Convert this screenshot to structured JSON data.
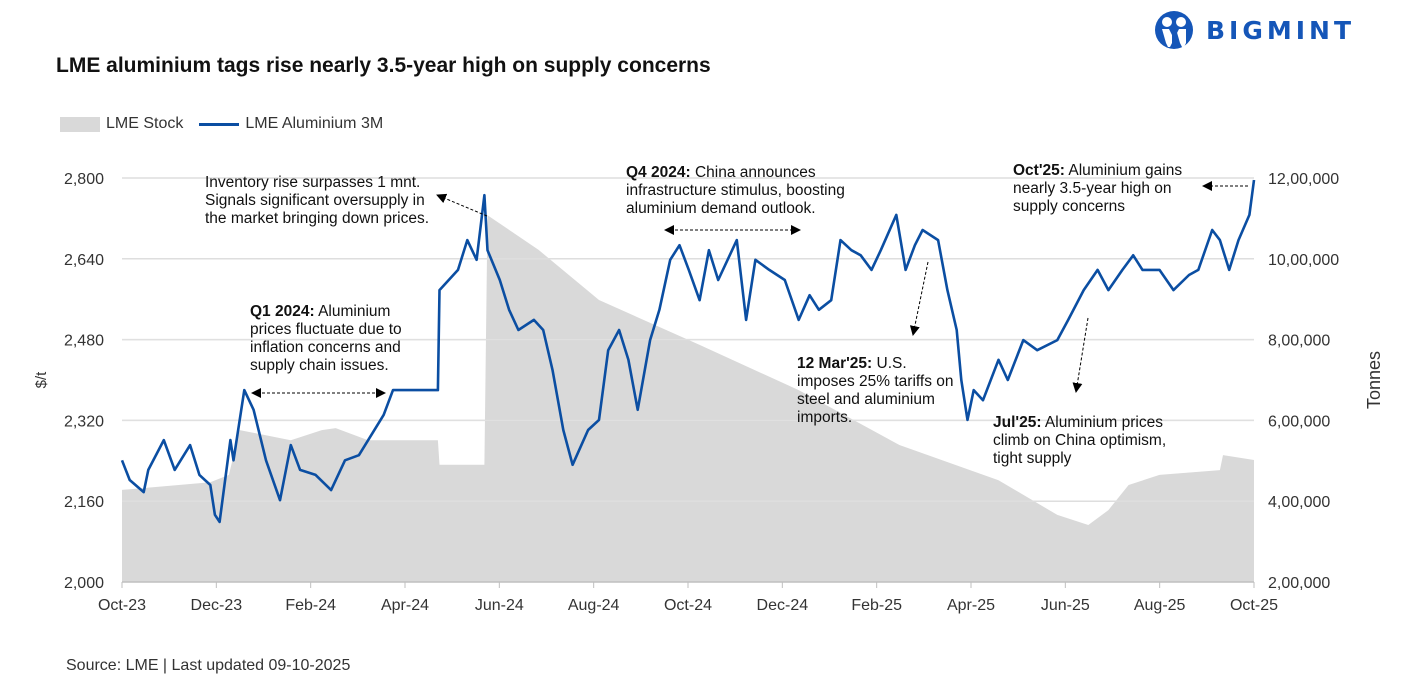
{
  "title": "LME aluminium tags rise nearly 3.5-year high on supply concerns",
  "logo": {
    "text": "BIGMINT",
    "color": "#1556b8"
  },
  "source": "Source: LME | Last updated 09-10-2025",
  "chart_data": {
    "type": "line+area",
    "title": "LME aluminium tags rise nearly 3.5-year high on supply concerns",
    "legend": {
      "placement": "top-left",
      "entries": [
        "LME Stock",
        "LME Aluminium 3M"
      ]
    },
    "x_ticks": [
      "Oct-23",
      "Dec-23",
      "Feb-24",
      "Apr-24",
      "Jun-24",
      "Aug-24",
      "Oct-24",
      "Dec-24",
      "Feb-25",
      "Apr-25",
      "Jun-25",
      "Aug-25",
      "Oct-25"
    ],
    "x_range": [
      "2023-10-01",
      "2025-10-01"
    ],
    "y_left": {
      "label": "$/t",
      "range": [
        2000,
        2800
      ],
      "ticks": [
        "2,000",
        "2,160",
        "2,320",
        "2,480",
        "2,640",
        "2,800"
      ],
      "tick_values": [
        2000,
        2160,
        2320,
        2480,
        2640,
        2800
      ]
    },
    "y_right": {
      "label": "Tonnes",
      "range": [
        200000,
        1200000
      ],
      "ticks": [
        "2,00,000",
        "4,00,000",
        "6,00,000",
        "8,00,000",
        "10,00,000",
        "12,00,000"
      ],
      "tick_values": [
        200000,
        400000,
        600000,
        800000,
        1000000,
        1200000
      ]
    },
    "grid": true,
    "colors": {
      "stock": "#d9d9d9",
      "price": "#0b4ea2"
    },
    "series": [
      {
        "name": "LME Stock",
        "type": "area",
        "axis": "right",
        "points": [
          [
            "2023-10-01",
            428000
          ],
          [
            "2023-11-27",
            447000
          ],
          [
            "2023-12-09",
            465000
          ],
          [
            "2023-12-16",
            576000
          ],
          [
            "2024-01-18",
            551000
          ],
          [
            "2024-02-07",
            576000
          ],
          [
            "2024-02-16",
            581000
          ],
          [
            "2024-03-08",
            551000
          ],
          [
            "2024-04-22",
            551000
          ],
          [
            "2024-04-23",
            490000
          ],
          [
            "2024-05-22",
            490000
          ],
          [
            "2024-05-24",
            1108000
          ],
          [
            "2024-06-26",
            1022000
          ],
          [
            "2024-08-04",
            898000
          ],
          [
            "2024-10-08",
            787000
          ],
          [
            "2024-12-11",
            675000
          ],
          [
            "2025-02-14",
            539000
          ],
          [
            "2025-04-19",
            452000
          ],
          [
            "2025-05-27",
            366000
          ],
          [
            "2025-06-16",
            341000
          ],
          [
            "2025-06-29",
            378000
          ],
          [
            "2025-07-12",
            440000
          ],
          [
            "2025-08-01",
            465000
          ],
          [
            "2025-09-09",
            477000
          ],
          [
            "2025-09-11",
            514000
          ],
          [
            "2025-10-01",
            502000
          ]
        ]
      },
      {
        "name": "LME Aluminium 3M",
        "type": "line",
        "axis": "left",
        "points": [
          [
            "2023-10-01",
            2241
          ],
          [
            "2023-10-06",
            2202
          ],
          [
            "2023-10-15",
            2178
          ],
          [
            "2023-10-18",
            2222
          ],
          [
            "2023-10-28",
            2281
          ],
          [
            "2023-11-04",
            2222
          ],
          [
            "2023-11-14",
            2271
          ],
          [
            "2023-11-20",
            2212
          ],
          [
            "2023-11-27",
            2192
          ],
          [
            "2023-11-30",
            2133
          ],
          [
            "2023-12-03",
            2119
          ],
          [
            "2023-12-10",
            2281
          ],
          [
            "2023-12-12",
            2241
          ],
          [
            "2023-12-19",
            2380
          ],
          [
            "2023-12-25",
            2341
          ],
          [
            "2024-01-02",
            2241
          ],
          [
            "2024-01-11",
            2162
          ],
          [
            "2024-01-18",
            2271
          ],
          [
            "2024-01-24",
            2222
          ],
          [
            "2024-02-03",
            2212
          ],
          [
            "2024-02-13",
            2182
          ],
          [
            "2024-02-22",
            2241
          ],
          [
            "2024-03-02",
            2251
          ],
          [
            "2024-03-08",
            2281
          ],
          [
            "2024-03-18",
            2331
          ],
          [
            "2024-03-24",
            2380
          ],
          [
            "2024-04-22",
            2380
          ],
          [
            "2024-04-23",
            2578
          ],
          [
            "2024-05-05",
            2618
          ],
          [
            "2024-05-11",
            2677
          ],
          [
            "2024-05-17",
            2638
          ],
          [
            "2024-05-22",
            2766
          ],
          [
            "2024-05-24",
            2657
          ],
          [
            "2024-06-01",
            2598
          ],
          [
            "2024-06-07",
            2539
          ],
          [
            "2024-06-13",
            2499
          ],
          [
            "2024-06-23",
            2519
          ],
          [
            "2024-06-29",
            2499
          ],
          [
            "2024-07-05",
            2420
          ],
          [
            "2024-07-12",
            2301
          ],
          [
            "2024-07-18",
            2232
          ],
          [
            "2024-07-28",
            2301
          ],
          [
            "2024-08-04",
            2321
          ],
          [
            "2024-08-10",
            2459
          ],
          [
            "2024-08-17",
            2499
          ],
          [
            "2024-08-23",
            2440
          ],
          [
            "2024-08-29",
            2341
          ],
          [
            "2024-09-06",
            2479
          ],
          [
            "2024-09-12",
            2539
          ],
          [
            "2024-09-19",
            2638
          ],
          [
            "2024-09-25",
            2667
          ],
          [
            "2024-10-01",
            2618
          ],
          [
            "2024-10-08",
            2558
          ],
          [
            "2024-10-14",
            2657
          ],
          [
            "2024-10-20",
            2598
          ],
          [
            "2024-11-01",
            2677
          ],
          [
            "2024-11-07",
            2519
          ],
          [
            "2024-11-13",
            2638
          ],
          [
            "2024-11-22",
            2618
          ],
          [
            "2024-12-02",
            2598
          ],
          [
            "2024-12-11",
            2519
          ],
          [
            "2024-12-18",
            2568
          ],
          [
            "2024-12-24",
            2539
          ],
          [
            "2025-01-01",
            2558
          ],
          [
            "2025-01-07",
            2677
          ],
          [
            "2025-01-14",
            2657
          ],
          [
            "2025-01-20",
            2647
          ],
          [
            "2025-01-27",
            2618
          ],
          [
            "2025-02-02",
            2657
          ],
          [
            "2025-02-12",
            2727
          ],
          [
            "2025-02-18",
            2618
          ],
          [
            "2025-02-24",
            2667
          ],
          [
            "2025-03-01",
            2697
          ],
          [
            "2025-03-11",
            2677
          ],
          [
            "2025-03-17",
            2578
          ],
          [
            "2025-03-23",
            2499
          ],
          [
            "2025-03-26",
            2400
          ],
          [
            "2025-03-30",
            2321
          ],
          [
            "2025-04-03",
            2380
          ],
          [
            "2025-04-09",
            2360
          ],
          [
            "2025-04-19",
            2440
          ],
          [
            "2025-04-25",
            2400
          ],
          [
            "2025-05-05",
            2479
          ],
          [
            "2025-05-14",
            2459
          ],
          [
            "2025-05-27",
            2479
          ],
          [
            "2025-06-03",
            2519
          ],
          [
            "2025-06-13",
            2578
          ],
          [
            "2025-06-22",
            2618
          ],
          [
            "2025-06-29",
            2578
          ],
          [
            "2025-07-08",
            2618
          ],
          [
            "2025-07-15",
            2647
          ],
          [
            "2025-07-21",
            2618
          ],
          [
            "2025-08-01",
            2618
          ],
          [
            "2025-08-10",
            2578
          ],
          [
            "2025-08-20",
            2608
          ],
          [
            "2025-08-26",
            2618
          ],
          [
            "2025-09-04",
            2697
          ],
          [
            "2025-09-09",
            2677
          ],
          [
            "2025-09-15",
            2618
          ],
          [
            "2025-09-21",
            2677
          ],
          [
            "2025-09-28",
            2727
          ],
          [
            "2025-10-01",
            2796
          ]
        ]
      }
    ],
    "annotations": [
      {
        "bold": "",
        "text": "Inventory rise surpasses 1 mnt. Signals significant oversupply in the market bringing down prices."
      },
      {
        "bold": "Q1 2024:",
        "text": " Aluminium prices fluctuate due to inflation concerns and supply chain issues."
      },
      {
        "bold": "Q4 2024:",
        "text": " China announces infrastructure stimulus, boosting aluminium demand outlook."
      },
      {
        "bold": "12 Mar'25:",
        "text": " U.S. imposes 25% tariffs on steel and aluminium imports."
      },
      {
        "bold": "Jul'25:",
        "text": " Aluminium prices climb on China optimism, tight supply"
      },
      {
        "bold": "Oct'25:",
        "text": " Aluminium gains nearly 3.5-year high on supply concerns"
      }
    ]
  }
}
